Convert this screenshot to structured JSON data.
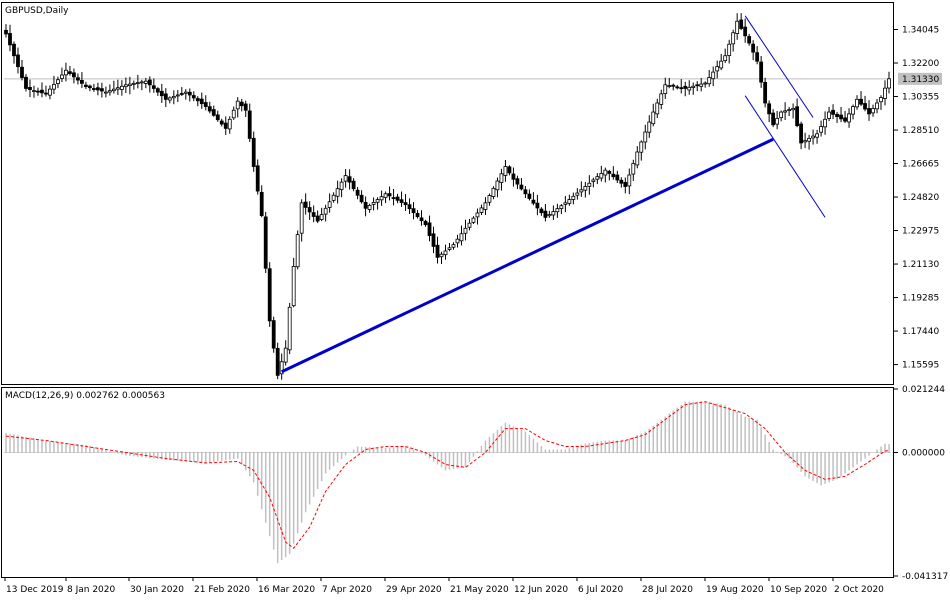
{
  "chart_data": [
    {
      "type": "candlestick",
      "symbol_label": "GBPUSD,Daily",
      "y_ticks": [
        "1.34045",
        "1.32200",
        "1.30355",
        "1.28510",
        "1.26665",
        "1.24820",
        "1.22975",
        "1.21130",
        "1.19285",
        "1.17440",
        "1.15595"
      ],
      "ylim": [
        1.1458,
        1.3545
      ],
      "current_price": 1.3133,
      "current_price_label": "1.31330",
      "x_ticks": [
        "13 Dec 2019",
        "8 Jan 2020",
        "30 Jan 2020",
        "21 Feb 2020",
        "16 Mar 2020",
        "7 Apr 2020",
        "29 Apr 2020",
        "21 May 2020",
        "12 Jun 2020",
        "6 Jul 2020",
        "28 Jul 2020",
        "19 Aug 2020",
        "10 Sep 2020",
        "2 Oct 2020"
      ],
      "bars_count": 222,
      "close_anchors": [
        [
          0,
          1.338
        ],
        [
          5,
          1.308
        ],
        [
          10,
          1.305
        ],
        [
          15,
          1.318
        ],
        [
          20,
          1.309
        ],
        [
          25,
          1.306
        ],
        [
          30,
          1.31
        ],
        [
          35,
          1.312
        ],
        [
          40,
          1.302
        ],
        [
          45,
          1.306
        ],
        [
          50,
          1.298
        ],
        [
          55,
          1.286
        ],
        [
          58,
          1.301
        ],
        [
          60,
          1.296
        ],
        [
          62,
          1.265
        ],
        [
          64,
          1.238
        ],
        [
          66,
          1.18
        ],
        [
          68,
          1.15
        ],
        [
          70,
          1.165
        ],
        [
          72,
          1.21
        ],
        [
          74,
          1.245
        ],
        [
          76,
          1.24
        ],
        [
          78,
          1.235
        ],
        [
          80,
          1.242
        ],
        [
          85,
          1.26
        ],
        [
          90,
          1.242
        ],
        [
          95,
          1.25
        ],
        [
          100,
          1.244
        ],
        [
          105,
          1.233
        ],
        [
          108,
          1.215
        ],
        [
          112,
          1.222
        ],
        [
          115,
          1.231
        ],
        [
          120,
          1.245
        ],
        [
          125,
          1.265
        ],
        [
          127,
          1.258
        ],
        [
          130,
          1.25
        ],
        [
          135,
          1.237
        ],
        [
          140,
          1.245
        ],
        [
          145,
          1.254
        ],
        [
          150,
          1.263
        ],
        [
          155,
          1.254
        ],
        [
          158,
          1.273
        ],
        [
          162,
          1.295
        ],
        [
          165,
          1.31
        ],
        [
          170,
          1.308
        ],
        [
          175,
          1.311
        ],
        [
          180,
          1.326
        ],
        [
          183,
          1.345
        ],
        [
          186,
          1.333
        ],
        [
          188,
          1.323
        ],
        [
          190,
          1.3
        ],
        [
          192,
          1.288
        ],
        [
          194,
          1.295
        ],
        [
          197,
          1.297
        ],
        [
          199,
          1.278
        ],
        [
          203,
          1.283
        ],
        [
          206,
          1.295
        ],
        [
          210,
          1.29
        ],
        [
          213,
          1.302
        ],
        [
          216,
          1.294
        ],
        [
          219,
          1.303
        ],
        [
          221,
          1.3133
        ]
      ],
      "trendlines": [
        {
          "color": "#0000cc",
          "from": [
            69,
            1.152
          ],
          "to": [
            192,
            1.28
          ]
        },
        {
          "color": "#0000cc",
          "from": [
            185,
            1.348
          ],
          "to": [
            202,
            1.292
          ]
        },
        {
          "color": "#0000cc",
          "from": [
            185,
            1.304
          ],
          "to": [
            205,
            1.237
          ]
        }
      ],
      "colors": {
        "candle": "#000000",
        "grid_line": "#c0c0c0",
        "trendline": "#0000cc"
      }
    },
    {
      "type": "bar+line",
      "indicator_label": "MACD(12,26,9) 0.002762 0.000563",
      "y_ticks": [
        "0.021244",
        "0.000000",
        "-0.041317"
      ],
      "ylim": [
        -0.041317,
        0.021244
      ],
      "histogram_anchors": [
        [
          0,
          0.0065
        ],
        [
          10,
          0.004
        ],
        [
          20,
          0.0025
        ],
        [
          30,
          -0.001
        ],
        [
          40,
          -0.0025
        ],
        [
          50,
          -0.0035
        ],
        [
          58,
          -0.002
        ],
        [
          62,
          -0.01
        ],
        [
          66,
          -0.028
        ],
        [
          68,
          -0.037
        ],
        [
          71,
          -0.034
        ],
        [
          75,
          -0.02
        ],
        [
          80,
          -0.007
        ],
        [
          85,
          -0.001
        ],
        [
          88,
          0.002
        ],
        [
          95,
          0.0015
        ],
        [
          100,
          0.002
        ],
        [
          105,
          -0.001
        ],
        [
          110,
          -0.006
        ],
        [
          115,
          -0.005
        ],
        [
          120,
          0.004
        ],
        [
          125,
          0.01
        ],
        [
          130,
          0.007
        ],
        [
          135,
          0.001
        ],
        [
          140,
          0.001
        ],
        [
          145,
          0.003
        ],
        [
          150,
          0.004
        ],
        [
          155,
          0.004
        ],
        [
          160,
          0.007
        ],
        [
          165,
          0.012
        ],
        [
          170,
          0.017
        ],
        [
          175,
          0.017
        ],
        [
          180,
          0.016
        ],
        [
          185,
          0.012
        ],
        [
          188,
          0.011
        ],
        [
          192,
          0.001
        ],
        [
          196,
          -0.002
        ],
        [
          200,
          -0.008
        ],
        [
          204,
          -0.011
        ],
        [
          208,
          -0.009
        ],
        [
          212,
          -0.005
        ],
        [
          216,
          -0.001
        ],
        [
          220,
          0.003
        ],
        [
          221,
          0.0028
        ]
      ],
      "signal_anchors": [
        [
          0,
          0.0055
        ],
        [
          10,
          0.004
        ],
        [
          20,
          0.002
        ],
        [
          30,
          0.0
        ],
        [
          40,
          -0.002
        ],
        [
          50,
          -0.0035
        ],
        [
          58,
          -0.003
        ],
        [
          62,
          -0.006
        ],
        [
          66,
          -0.015
        ],
        [
          70,
          -0.03
        ],
        [
          72,
          -0.032
        ],
        [
          76,
          -0.025
        ],
        [
          80,
          -0.013
        ],
        [
          85,
          -0.004
        ],
        [
          90,
          0.001
        ],
        [
          95,
          0.002
        ],
        [
          100,
          0.002
        ],
        [
          105,
          0.0
        ],
        [
          110,
          -0.004
        ],
        [
          115,
          -0.005
        ],
        [
          120,
          0.0
        ],
        [
          125,
          0.008
        ],
        [
          130,
          0.008
        ],
        [
          135,
          0.004
        ],
        [
          140,
          0.002
        ],
        [
          145,
          0.002
        ],
        [
          150,
          0.003
        ],
        [
          155,
          0.004
        ],
        [
          160,
          0.006
        ],
        [
          165,
          0.011
        ],
        [
          170,
          0.016
        ],
        [
          175,
          0.017
        ],
        [
          180,
          0.015
        ],
        [
          185,
          0.013
        ],
        [
          190,
          0.008
        ],
        [
          195,
          0.0
        ],
        [
          200,
          -0.006
        ],
        [
          205,
          -0.009
        ],
        [
          210,
          -0.008
        ],
        [
          215,
          -0.004
        ],
        [
          220,
          0.0005
        ],
        [
          221,
          0.0006
        ]
      ],
      "colors": {
        "histogram": "#c0c0c0",
        "signal": "#ff0000",
        "zero_line": "#000000"
      }
    }
  ]
}
